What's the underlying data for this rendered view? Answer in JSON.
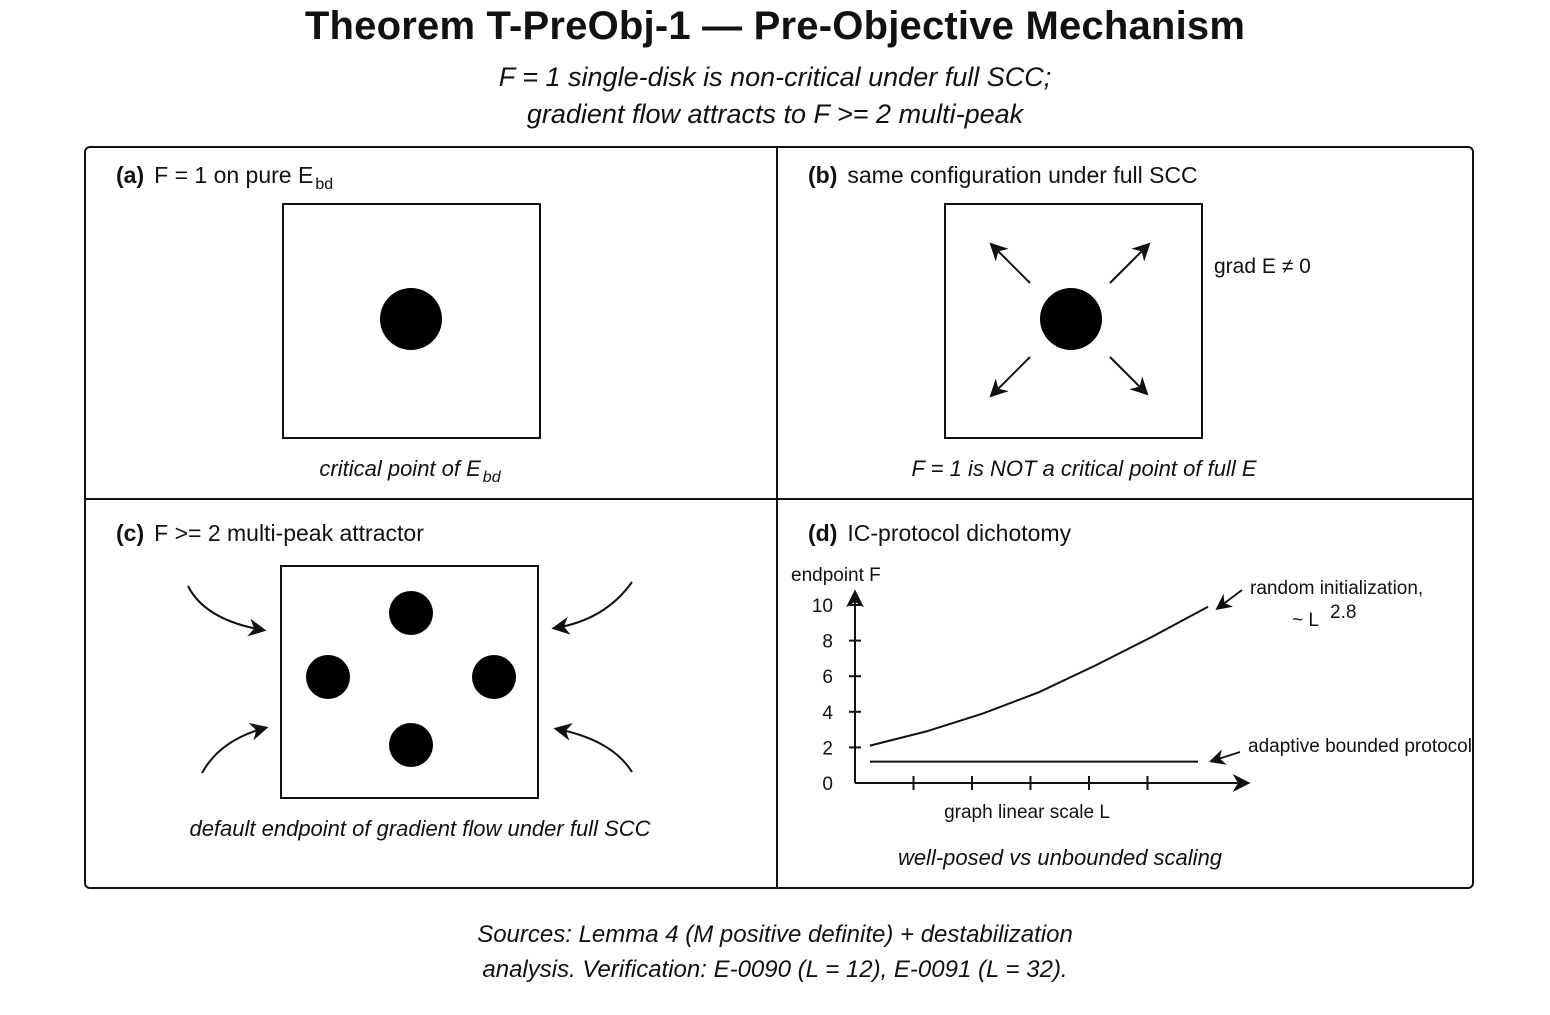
{
  "title": "Theorem T-PreObj-1 — Pre-Objective Mechanism",
  "subtitle": {
    "line1": "F  =  1  single-disk is non-critical under full SCC;",
    "line2": "gradient flow attracts to F >= 2 multi-peak"
  },
  "panels": {
    "a": {
      "tag": "(a)",
      "label": "F = 1 on pure E",
      "label_sub": "bd",
      "caption": "critical point of E",
      "caption_sub": "bd"
    },
    "b": {
      "tag": "(b)",
      "label": "same configuration under full SCC",
      "note": "grad E ≠ 0",
      "caption": "F  =  1  is NOT a critical point of full E"
    },
    "c": {
      "tag": "(c)",
      "label": "F >= 2 multi-peak attractor",
      "caption": "default endpoint of gradient flow under full SCC"
    },
    "d": {
      "tag": "(d)",
      "label": "IC-protocol dichotomy",
      "caption": "well-posed vs unbounded scaling"
    }
  },
  "footer": {
    "line1": "Sources: Lemma 4 (M positive definite) + destabilization",
    "line2": "analysis. Verification: E-0090 (L = 12), E-0091 (L = 32)."
  },
  "chart_data": {
    "type": "line",
    "ylabel": "endpoint F",
    "xlabel": "graph linear scale  L",
    "yticks": [
      0,
      2,
      4,
      6,
      8,
      10
    ],
    "ylim": [
      0,
      10
    ],
    "series": [
      {
        "name": "random initialization,",
        "scaling": "~ L",
        "exponent": "2.8",
        "x": [
          0,
          1,
          2,
          3,
          4,
          5,
          6
        ],
        "values": [
          2.1,
          2.9,
          3.9,
          5.1,
          6.6,
          8.2,
          9.9
        ]
      },
      {
        "name": "adaptive bounded protocol",
        "x": [
          0,
          6
        ],
        "values": [
          1.2,
          1.2
        ]
      }
    ],
    "color": "#111111"
  }
}
